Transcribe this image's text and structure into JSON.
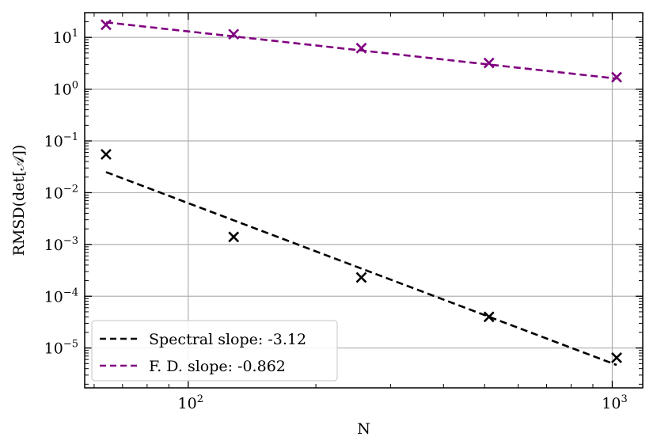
{
  "chart_data": {
    "type": "scatter",
    "title": "",
    "xlabel": "N",
    "ylabel": "RMSD(det[𝒜])",
    "xscale": "log",
    "yscale": "log",
    "xlim": [
      57,
      1180
    ],
    "ylim": [
      1.7e-06,
      30
    ],
    "grid": true,
    "legend_position": "lower-left",
    "x_ticks": [
      {
        "base": "10",
        "exp": "2",
        "value": 100
      },
      {
        "base": "10",
        "exp": "3",
        "value": 1000
      }
    ],
    "y_ticks": [
      {
        "base": "10",
        "exp": "1",
        "value": 10
      },
      {
        "base": "10",
        "exp": "0",
        "value": 1
      },
      {
        "base": "10",
        "exp": "−1",
        "value": 0.1
      },
      {
        "base": "10",
        "exp": "−2",
        "value": 0.01
      },
      {
        "base": "10",
        "exp": "−3",
        "value": 0.001
      },
      {
        "base": "10",
        "exp": "−4",
        "value": 0.0001
      },
      {
        "base": "10",
        "exp": "−5",
        "value": 1e-05
      }
    ],
    "series": [
      {
        "name": "Spectral slope: -3.12",
        "color": "#000000",
        "marker": "x",
        "line_style": "dashed",
        "points": [
          {
            "x": 64,
            "y": 0.055
          },
          {
            "x": 128,
            "y": 0.0014
          },
          {
            "x": 256,
            "y": 0.00023
          },
          {
            "x": 512,
            "y": 4e-05
          },
          {
            "x": 1024,
            "y": 6.5e-06
          }
        ],
        "fit": [
          {
            "x": 64,
            "y": 0.025
          },
          {
            "x": 1024,
            "y": 4.7e-06
          }
        ]
      },
      {
        "name": "F. D. slope: -0.862",
        "color": "#800080",
        "marker": "x",
        "line_style": "dashed",
        "points": [
          {
            "x": 64,
            "y": 17.5
          },
          {
            "x": 128,
            "y": 11.5
          },
          {
            "x": 256,
            "y": 6.2
          },
          {
            "x": 512,
            "y": 3.2
          },
          {
            "x": 1024,
            "y": 1.7
          }
        ],
        "fit": [
          {
            "x": 64,
            "y": 19.5
          },
          {
            "x": 1024,
            "y": 1.6
          }
        ]
      }
    ]
  }
}
